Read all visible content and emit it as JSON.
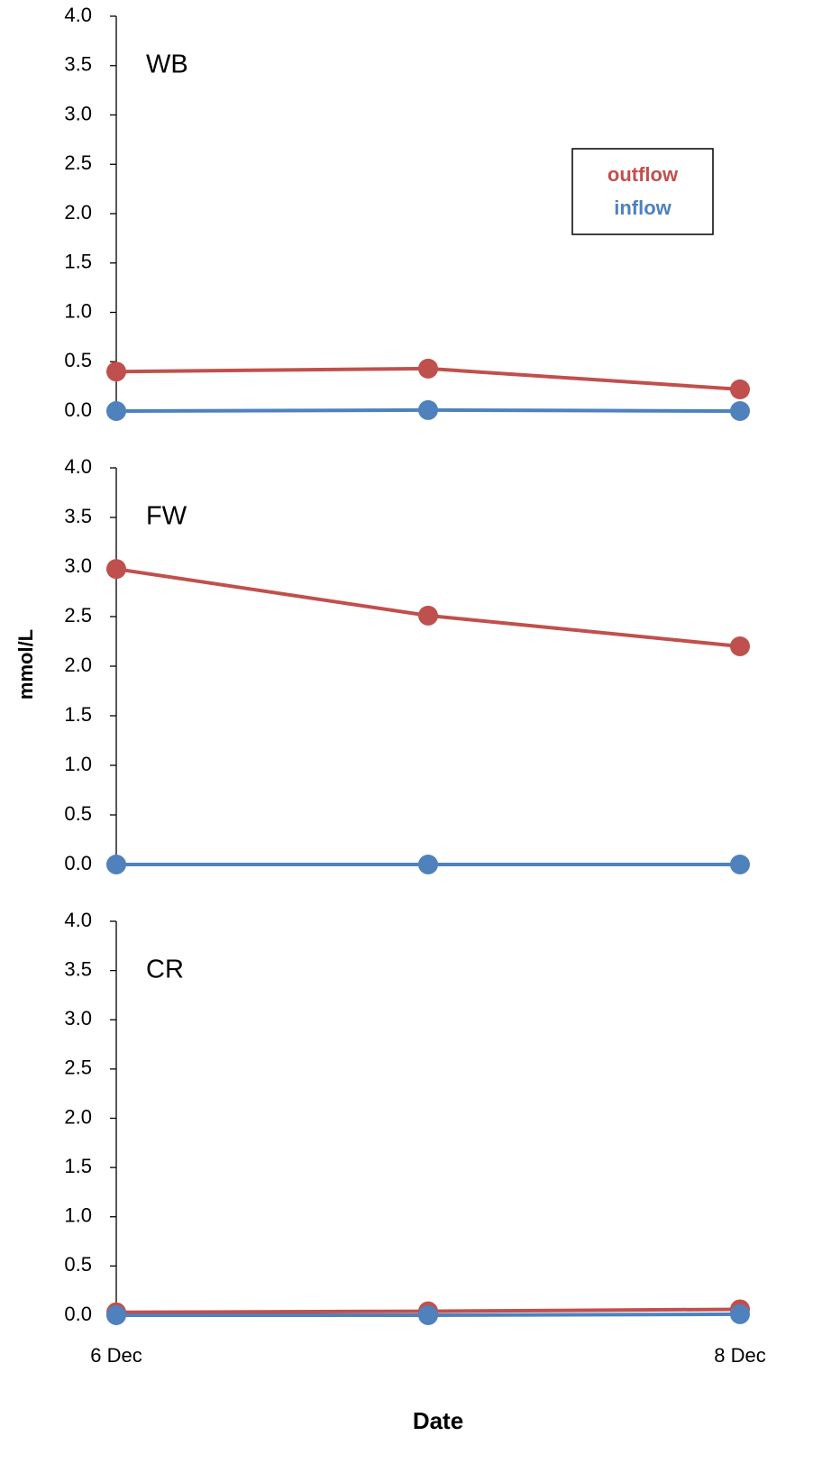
{
  "chart_data": {
    "type": "line",
    "categories": [
      "6 Dec",
      null,
      "8 Dec"
    ],
    "xlabel": "Date",
    "ylabel": "mmol/L",
    "legend": "upper right",
    "panels": [
      {
        "label": "WB",
        "ylim": [
          0,
          4
        ],
        "yticks": [
          {
            "value": 0,
            "label": "0.0"
          },
          0.5,
          {
            "value": 1,
            "label": "1.0"
          },
          1.5,
          {
            "value": 2,
            "label": "2.0"
          },
          2.5,
          {
            "value": 3,
            "label": "3.0"
          },
          3.5,
          {
            "value": 4,
            "label": "4.0"
          }
        ],
        "series": [
          {
            "name": "outflow",
            "color": "#c0504d",
            "values": [
              0.4,
              0.43,
              0.22
            ]
          },
          {
            "name": "inflow",
            "color": "#4f81bd",
            "values": [
              0.0,
              0.01,
              0.0
            ]
          }
        ]
      },
      {
        "label": "FW",
        "ylim": [
          0,
          4
        ],
        "yticks": [
          {
            "value": 0,
            "label": "0.0"
          },
          0.5,
          {
            "value": 1,
            "label": "1.0"
          },
          1.5,
          {
            "value": 2,
            "label": "2.0"
          },
          2.5,
          {
            "value": 3,
            "label": "3.0"
          },
          3.5,
          {
            "value": 4,
            "label": "4.0"
          }
        ],
        "series": [
          {
            "name": "outflow",
            "color": "#c0504d",
            "values": [
              2.98,
              2.51,
              2.2
            ]
          },
          {
            "name": "inflow",
            "color": "#4f81bd",
            "values": [
              0.0,
              0.0,
              0.0
            ]
          }
        ]
      },
      {
        "label": "CR",
        "ylim": [
          0,
          4
        ],
        "yticks": [
          {
            "value": 0,
            "label": "0.0"
          },
          0.5,
          {
            "value": 1,
            "label": "1.0"
          },
          1.5,
          {
            "value": 2,
            "label": "2.0"
          },
          2.5,
          {
            "value": 3,
            "label": "3.0"
          },
          3.5,
          {
            "value": 4,
            "label": "4.0"
          }
        ],
        "series": [
          {
            "name": "outflow",
            "color": "#c0504d",
            "values": [
              0.03,
              0.04,
              0.06
            ]
          },
          {
            "name": "inflow",
            "color": "#4f81bd",
            "values": [
              0.0,
              0.0,
              0.01
            ]
          }
        ]
      }
    ]
  }
}
